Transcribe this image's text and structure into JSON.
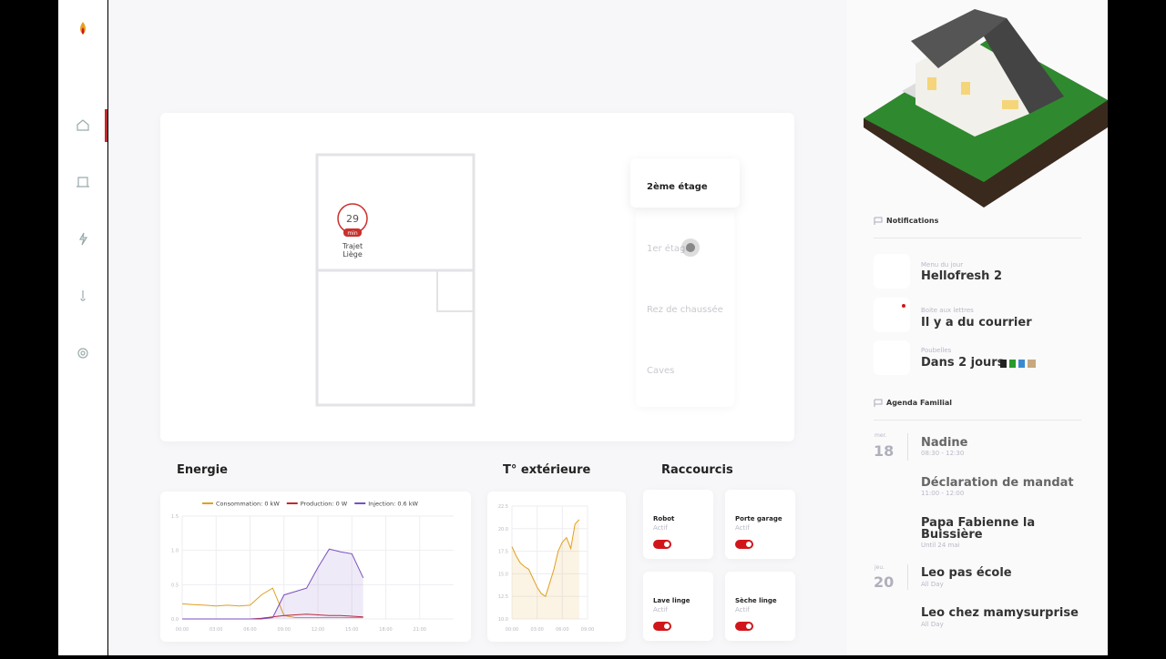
{
  "floorplan": {
    "marker": {
      "value": 29,
      "unit": "min",
      "line1": "Trajet",
      "line2": "Liège"
    }
  },
  "floors": [
    "2ème étage",
    "1er étage",
    "Rez de chaussée",
    "Caves"
  ],
  "chart_data": [
    {
      "type": "line",
      "title": "Energie",
      "x": [
        0,
        1,
        2,
        3,
        4,
        5,
        6,
        7,
        8,
        9,
        10,
        11,
        12,
        13,
        14,
        15,
        16
      ],
      "series": [
        {
          "name": "Consommation: 0 kW",
          "color": "#e0a020",
          "values": [
            0.22,
            0.21,
            0.2,
            0.19,
            0.2,
            0.19,
            0.2,
            0.35,
            0.45,
            0.05,
            0.02,
            0.02,
            0.02,
            0.02,
            0.02,
            0.02,
            0.02
          ]
        },
        {
          "name": "Production: 0 W",
          "color": "#c0282d",
          "values": [
            0,
            0,
            0,
            0,
            0,
            0,
            0,
            0.01,
            0.03,
            0.05,
            0.06,
            0.07,
            0.06,
            0.05,
            0.05,
            0.04,
            0.03
          ]
        },
        {
          "name": "Injection: 0.6 kW",
          "color": "#7a4fc0",
          "fill": true,
          "values": [
            0,
            0,
            0,
            0,
            0,
            0,
            0,
            0,
            0.02,
            0.35,
            0.4,
            0.45,
            0.75,
            1.02,
            0.98,
            0.95,
            0.6
          ]
        }
      ],
      "xlim": [
        0,
        24
      ],
      "xticks": [
        {
          "value": 0,
          "label": "00:00"
        },
        {
          "value": 3,
          "label": "03:00"
        },
        {
          "value": 6,
          "label": "06:00"
        },
        {
          "value": 9,
          "label": "09:00"
        },
        {
          "value": 12,
          "label": "12:00"
        },
        {
          "value": 15,
          "label": "15:00"
        },
        {
          "value": 18,
          "label": "18:00"
        },
        {
          "value": 21,
          "label": "21:00"
        }
      ],
      "ylim": [
        0,
        1.5
      ],
      "yticks": [
        {
          "value": 0,
          "label": "0.0"
        },
        0.5,
        {
          "value": 1,
          "label": "1.0"
        },
        1.5
      ],
      "grid": true
    },
    {
      "type": "line",
      "title": "T° extérieure",
      "x": [
        0,
        0.5,
        1,
        1.5,
        2,
        2.5,
        3,
        3.5,
        4,
        4.5,
        5,
        5.5,
        6,
        6.5,
        7,
        7.5,
        8
      ],
      "series": [
        {
          "name": "T°",
          "color": "#e0a020",
          "fill": true,
          "values": [
            18.0,
            17.0,
            16.2,
            15.8,
            15.5,
            14.5,
            13.5,
            12.8,
            12.5,
            14.0,
            15.5,
            17.5,
            18.5,
            19.0,
            17.8,
            20.5,
            21.0
          ]
        }
      ],
      "xlim": [
        0,
        9
      ],
      "xticks": [
        {
          "value": 0,
          "label": "00:00"
        },
        {
          "value": 3,
          "label": "03:00"
        },
        {
          "value": 6,
          "label": "06:00"
        },
        {
          "value": 9,
          "label": "09:00"
        }
      ],
      "ylim": [
        10,
        22.5
      ],
      "yticks": [
        {
          "value": 10,
          "label": "10.0"
        },
        12.5,
        {
          "value": 15,
          "label": "15.0"
        },
        17.5,
        {
          "value": 20,
          "label": "20.0"
        },
        22.5
      ],
      "grid": true
    }
  ],
  "shortcuts": {
    "title": "Raccourcis",
    "items": [
      {
        "name": "Robot",
        "status": "Actif"
      },
      {
        "name": "Porte garage",
        "status": "Actif"
      },
      {
        "name": "Lave linge",
        "status": "Actif"
      },
      {
        "name": "Sèche linge",
        "status": "Actif"
      }
    ]
  },
  "notifications": {
    "title": "Notifications",
    "items": [
      {
        "label": "Menu du jour",
        "text": "Hellofresh 2"
      },
      {
        "label": "Boite aux lettres",
        "text": "Il y a du courrier"
      },
      {
        "label": "Poubelles",
        "text": "Dans 2 jours"
      }
    ]
  },
  "agenda": {
    "title": "Agenda Familial",
    "days": [
      {
        "weekday": "mer.",
        "day": 18,
        "events": [
          {
            "title": "Nadine",
            "time": "08:30 - 12:30"
          },
          {
            "title": "Déclaration de mandat",
            "time": "11:00 - 12:00"
          },
          {
            "title": "Papa Fabienne la Buissière",
            "time": "Until 24 mai"
          }
        ]
      },
      {
        "weekday": "jeu.",
        "day": 20,
        "events": [
          {
            "title": "Leo pas école",
            "time": "All Day"
          },
          {
            "title": "Leo chez mamysurprise",
            "time": "All Day"
          }
        ]
      }
    ]
  }
}
